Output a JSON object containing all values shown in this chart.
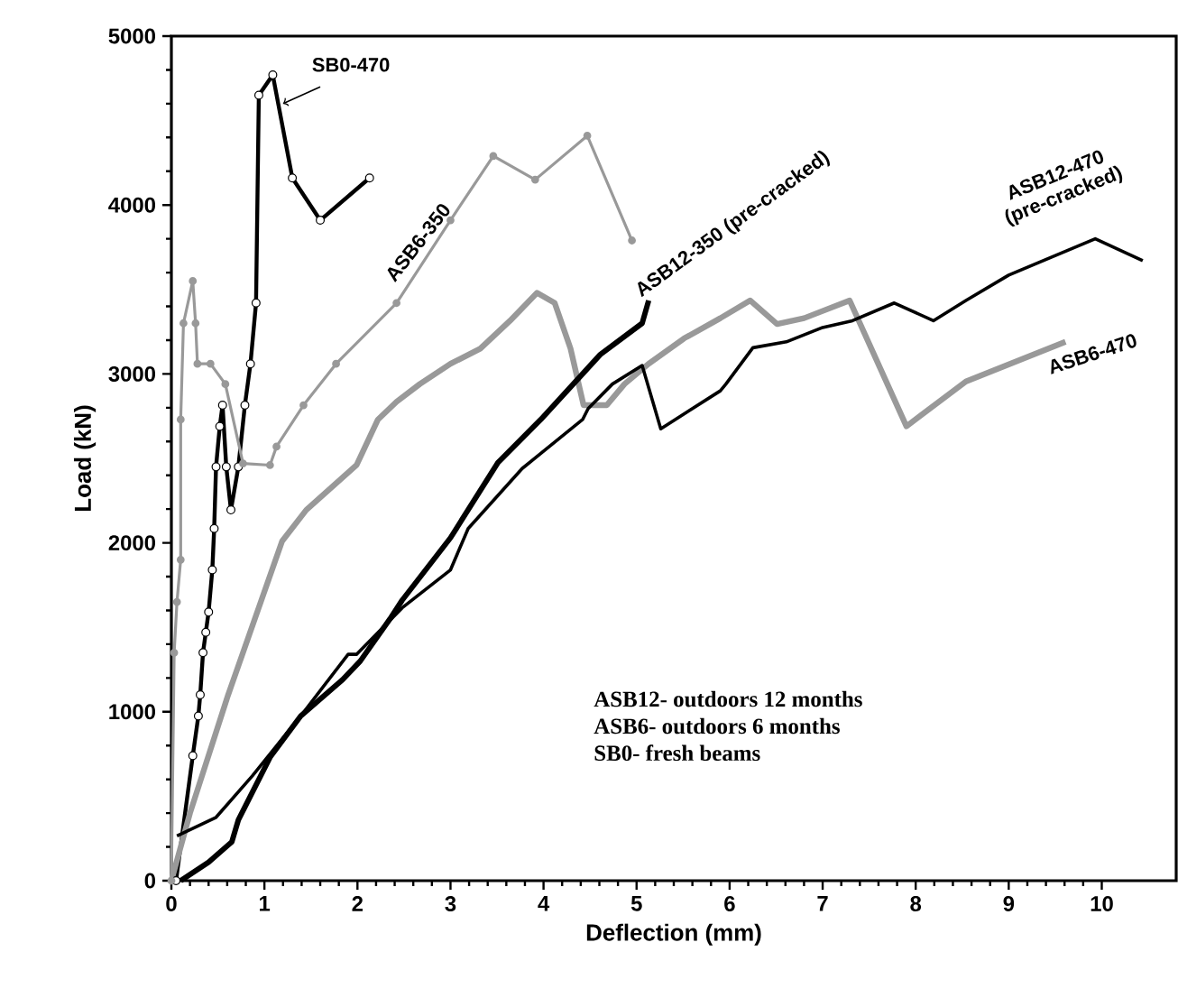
{
  "chart_data": {
    "type": "line",
    "xlabel": "Deflection (mm)",
    "ylabel": "Load (kN)",
    "xlim": [
      0,
      10.8
    ],
    "ylim": [
      0,
      5000
    ],
    "xticks": [
      0,
      1,
      2,
      3,
      4,
      5,
      6,
      7,
      8,
      9,
      10
    ],
    "yticks": [
      0,
      1000,
      2000,
      3000,
      4000,
      5000
    ],
    "grid": false,
    "legend": false,
    "series": [
      {
        "name": "SB0-470",
        "color": "#000000",
        "marker": "circle",
        "x": [
          0.05,
          0.23,
          0.29,
          0.31,
          0.34,
          0.37,
          0.4,
          0.44,
          0.46,
          0.48,
          0.52,
          0.55,
          0.59,
          0.64,
          0.72,
          0.79,
          0.85,
          0.91,
          0.94,
          1.09,
          1.3,
          1.6,
          2.13
        ],
        "values": [
          0,
          740,
          975,
          1100,
          1350,
          1470,
          1590,
          1840,
          2085,
          2450,
          2690,
          2815,
          2450,
          2195,
          2450,
          2815,
          3060,
          3420,
          4650,
          4770,
          4160,
          3910,
          4160
        ]
      },
      {
        "name": "ASB6-350",
        "color": "#999999",
        "marker": "dot",
        "x": [
          0,
          0.03,
          0.06,
          0.1,
          0.1,
          0.13,
          0.23,
          0.26,
          0.28,
          0.42,
          0.58,
          0.77,
          1.06,
          1.13,
          1.42,
          1.77,
          2.42,
          3.0,
          3.46,
          3.91,
          4.47,
          4.95
        ],
        "values": [
          0,
          1350,
          1650,
          1900,
          2730,
          3300,
          3550,
          3300,
          3060,
          3060,
          2940,
          2470,
          2460,
          2570,
          2815,
          3060,
          3420,
          3910,
          4290,
          4150,
          4410,
          3790
        ]
      },
      {
        "name": "ASB6-470",
        "color": "#999999",
        "marker": "none",
        "x": [
          0,
          0.2,
          0.61,
          1.19,
          1.45,
          1.99,
          2.22,
          2.42,
          2.67,
          3.0,
          3.32,
          3.64,
          3.93,
          4.12,
          4.29,
          4.43,
          4.68,
          4.87,
          5.13,
          5.51,
          5.9,
          6.22,
          6.51,
          6.8,
          7.29,
          7.9,
          8.54,
          9.61
        ],
        "values": [
          0,
          400,
          1100,
          2010,
          2195,
          2460,
          2730,
          2835,
          2940,
          3060,
          3150,
          3315,
          3480,
          3420,
          3150,
          2815,
          2815,
          2940,
          3060,
          3210,
          3330,
          3435,
          3295,
          3330,
          3435,
          2690,
          2955,
          3190
        ]
      },
      {
        "name": "ASB12-350 (pre-cracked)",
        "color": "#000000",
        "marker": "none",
        "x": [
          0.1,
          0.4,
          0.65,
          0.72,
          1.06,
          1.39,
          1.84,
          2.03,
          2.35,
          2.48,
          3.0,
          3.51,
          3.97,
          4.61,
          5.06,
          5.13
        ],
        "values": [
          0,
          110,
          230,
          360,
          730,
          975,
          1190,
          1300,
          1550,
          1660,
          2030,
          2475,
          2730,
          3115,
          3300,
          3435
        ]
      },
      {
        "name": "ASB12-470 (pre-cracked)",
        "color": "#000000",
        "marker": "none",
        "x": [
          0.06,
          0.48,
          0.87,
          1.39,
          1.9,
          1.99,
          2.48,
          3.0,
          3.19,
          3.77,
          4.42,
          4.48,
          4.74,
          5.06,
          5.26,
          5.9,
          5.96,
          6.25,
          6.61,
          7.0,
          7.32,
          7.77,
          8.19,
          8.54,
          9.0,
          9.93,
          10.44
        ],
        "values": [
          265,
          375,
          620,
          975,
          1340,
          1340,
          1615,
          1840,
          2085,
          2440,
          2730,
          2795,
          2940,
          3050,
          2675,
          2900,
          2940,
          3155,
          3190,
          3275,
          3315,
          3420,
          3315,
          3435,
          3585,
          3800,
          3670
        ]
      }
    ],
    "annotations": [
      "ASB12- outdoors 12 months",
      "ASB6- outdoors 6 months",
      "SB0- fresh beams"
    ]
  }
}
